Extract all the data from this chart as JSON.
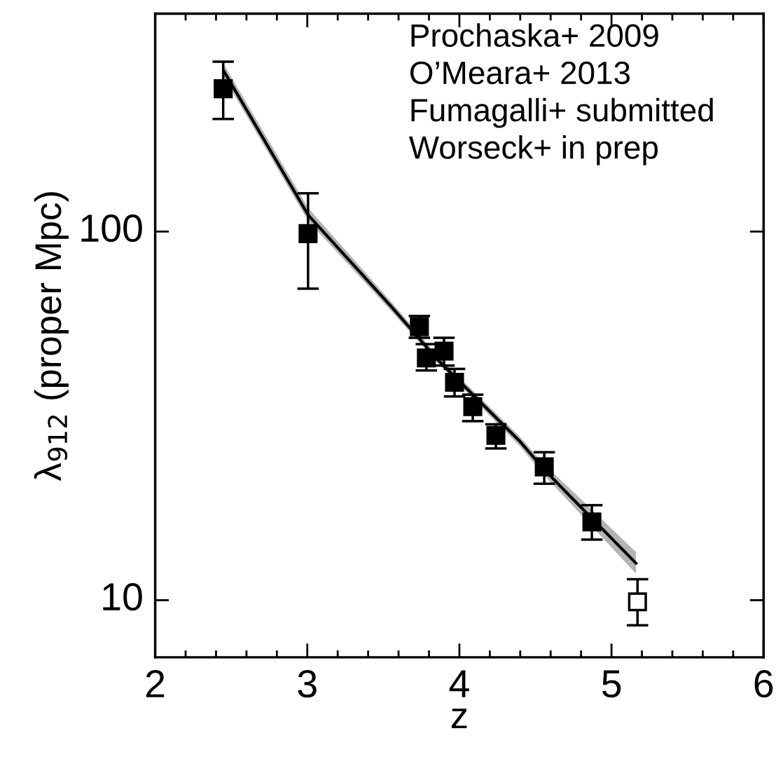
{
  "chart_data": {
    "type": "scatter",
    "xlabel": "z",
    "ylabel": "λ$_{912}$ (proper Mpc)",
    "xlim": [
      2,
      6
    ],
    "xticks": [
      2,
      3,
      4,
      5,
      6
    ],
    "ylim": [
      7,
      390
    ],
    "yticks": [
      10,
      100
    ],
    "log": "y",
    "grid": false,
    "marker": "square",
    "annotations": [
      "Prochaska+ 2009",
      "O’Meara+ 2013",
      "Fumagalli+ submitted",
      "Worseck+ in prep"
    ],
    "series": [
      {
        "type": "line",
        "color": "#000000",
        "line_style": "solid",
        "marker": "none",
        "x": [
          2.452,
          3.005,
          3.558,
          3.857,
          4.4,
          4.558,
          4.72,
          5.161
        ],
        "values": [
          272,
          111,
          62.2,
          44.9,
          26.9,
          22.6,
          19.3,
          12.6
        ],
        "lower": [
          262,
          107,
          60.5,
          44,
          26.1,
          21.8,
          18.5,
          11.8
        ],
        "upper": [
          284,
          116,
          64,
          46,
          27.7,
          23.3,
          20.2,
          13.5
        ]
      },
      {
        "type": "scatter",
        "color": "#000000",
        "x": [
          2.447,
          3.005,
          3.737,
          3.783,
          3.899,
          3.968,
          4.088,
          4.24,
          4.558,
          4.871
        ],
        "values": [
          244,
          98.7,
          55.2,
          45.4,
          47.4,
          39.0,
          33.5,
          28.0,
          23.0,
          16.3
        ],
        "errors": [
          [
            202,
            289
          ],
          [
            70,
            127
          ],
          [
            51.5,
            59
          ],
          [
            42,
            49.5
          ],
          [
            43.3,
            51.5
          ],
          [
            35.7,
            42.4
          ],
          [
            30.6,
            36.1
          ],
          [
            25.8,
            30.0
          ],
          [
            20.7,
            25.2
          ],
          [
            14.6,
            18.1
          ]
        ]
      },
      {
        "type": "scatter",
        "color": "#ffffff",
        "x": [
          5.171
        ],
        "values": [
          9.9
        ],
        "errors": [
          [
            8.55,
            11.4
          ]
        ]
      }
    ]
  }
}
